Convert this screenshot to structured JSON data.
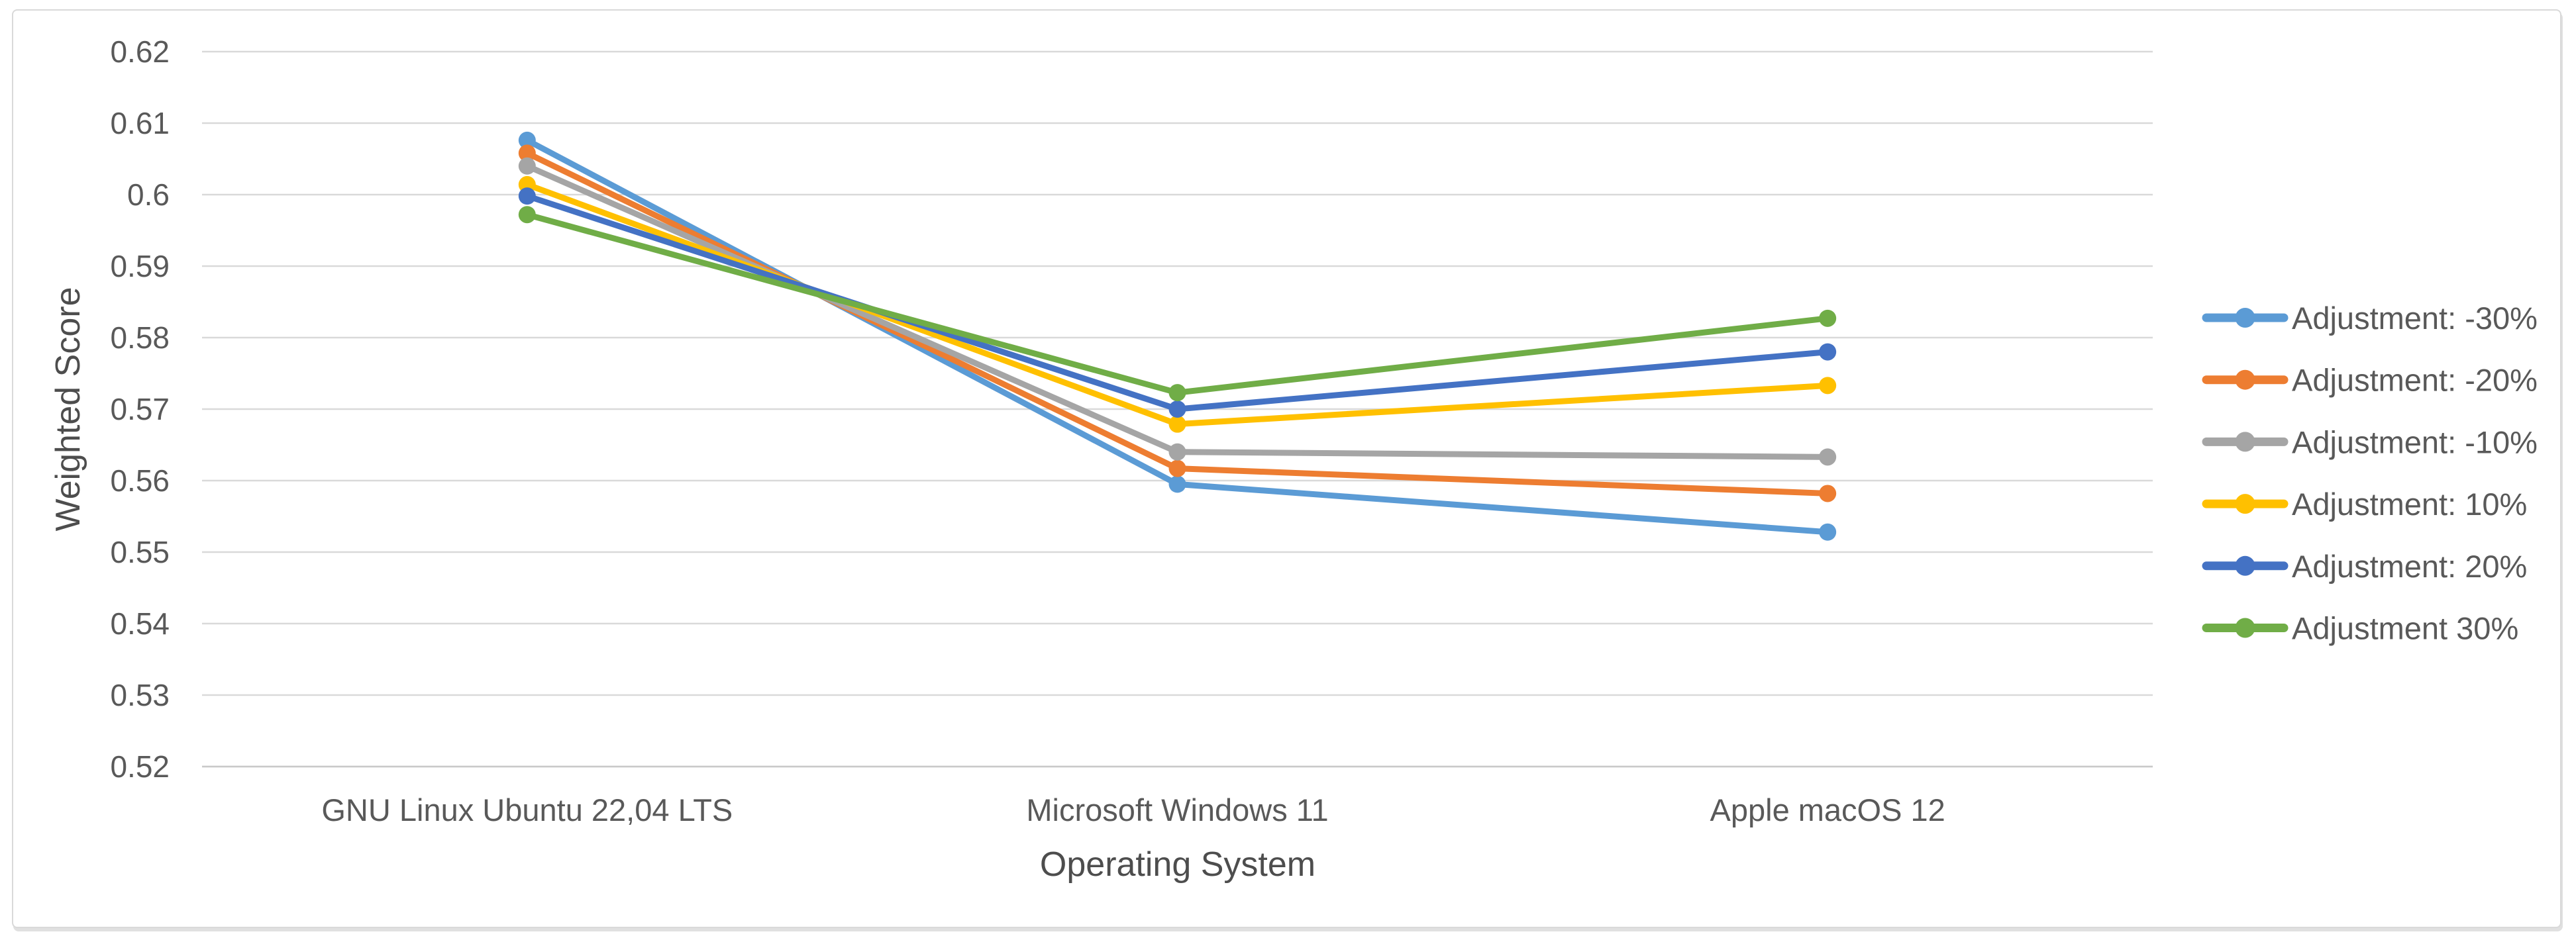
{
  "chart_data": {
    "type": "line",
    "title": "",
    "xlabel": "Operating System",
    "ylabel": "Weighted Score",
    "categories": [
      "GNU Linux Ubuntu 22,04 LTS",
      "Microsoft Windows 11",
      "Apple macOS 12"
    ],
    "series": [
      {
        "name": "Adjustment: -30%",
        "color": "#5B9BD5",
        "values": [
          0.6076,
          0.5595,
          0.5528
        ]
      },
      {
        "name": "Adjustment: -20%",
        "color": "#ED7D31",
        "values": [
          0.6058,
          0.5617,
          0.5582
        ]
      },
      {
        "name": "Adjustment: -10%",
        "color": "#A5A5A5",
        "values": [
          0.604,
          0.564,
          0.5633
        ]
      },
      {
        "name": "Adjustment: 10%",
        "color": "#FFC000",
        "values": [
          0.6014,
          0.5679,
          0.5733
        ]
      },
      {
        "name": "Adjustment: 20%",
        "color": "#4472C4",
        "values": [
          0.5998,
          0.57,
          0.578
        ]
      },
      {
        "name": "Adjustment 30%",
        "color": "#70AD47",
        "values": [
          0.5972,
          0.5723,
          0.5827
        ]
      }
    ],
    "ylim": [
      0.52,
      0.62
    ],
    "ytick_step": 0.01,
    "ytick_labels": [
      "0.62",
      "0.61",
      "0.6",
      "0.59",
      "0.58",
      "0.57",
      "0.56",
      "0.55",
      "0.54",
      "0.53",
      "0.52"
    ],
    "grid": true,
    "legend_position": "right",
    "marker": "circle"
  },
  "styles": {
    "grid_color": "#D9D9D9",
    "axis_line_color": "#C9C9C9",
    "tick_text_color": "#595959",
    "axis_title_color": "#4d4d4d",
    "frame_border_color": "#D9D9D9",
    "background_color": "#FFFFFF"
  }
}
